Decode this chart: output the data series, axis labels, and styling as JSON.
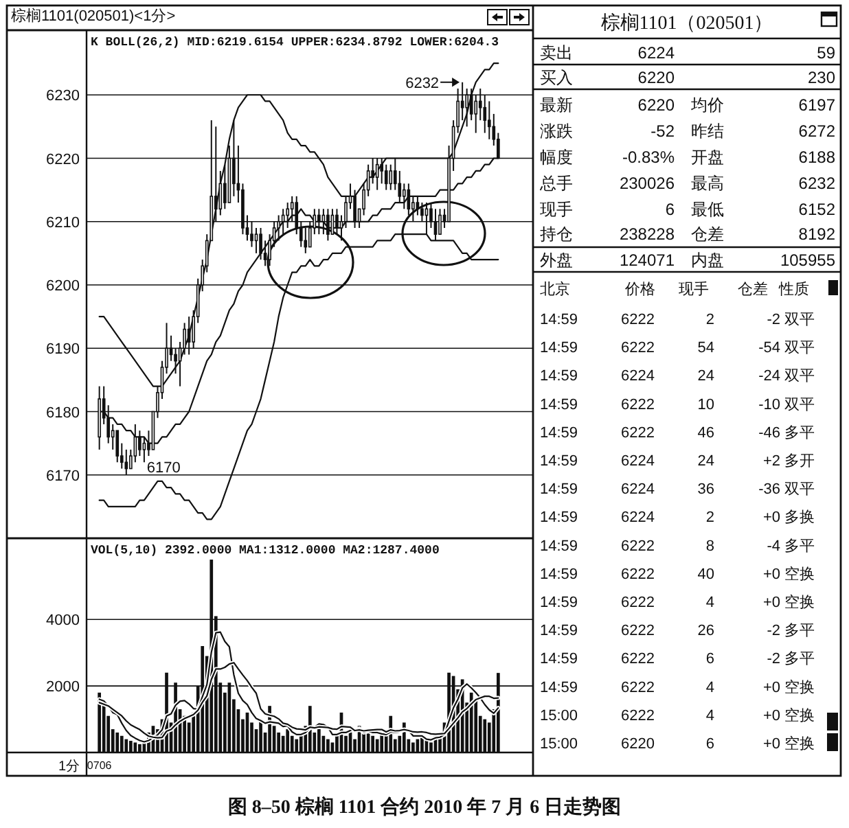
{
  "chart_data": [
    {
      "type": "candlestick",
      "title": "棕榈1101(020501)<1分>",
      "subtitle": "K BOLL(26,2) MID:6219.6154 UPPER:6234.8792 LOWER:6204.3",
      "color": "#111111",
      "categories": [
        null,
        null,
        null,
        null,
        null,
        null,
        null,
        null,
        null,
        null,
        null,
        null,
        null,
        null,
        null,
        null,
        null,
        null,
        null,
        null,
        null,
        null,
        null,
        null,
        null,
        null,
        null,
        null,
        null,
        null,
        null,
        null,
        null,
        null,
        null,
        null,
        null,
        null,
        null,
        null,
        null,
        null,
        null,
        null,
        null,
        null,
        null,
        null,
        null,
        null,
        null,
        null,
        null,
        null,
        null,
        null,
        null,
        null,
        null,
        null,
        null,
        null,
        null,
        null,
        null,
        null,
        null,
        null,
        null,
        null,
        null,
        null,
        null,
        null,
        null,
        null,
        null,
        null,
        null,
        null,
        null,
        null,
        null,
        null,
        null,
        null,
        null,
        null,
        null,
        null
      ],
      "ohlc": [
        [
          6176,
          6184,
          6174,
          6182
        ],
        [
          6182,
          6184,
          6178,
          6179
        ],
        [
          6179,
          6181,
          6175,
          6176
        ],
        [
          6176,
          6178,
          6174,
          6177
        ],
        [
          6177,
          6177,
          6172,
          6173
        ],
        [
          6173,
          6175,
          6171,
          6172
        ],
        [
          6172,
          6174,
          6170,
          6171
        ],
        [
          6171,
          6174,
          6171,
          6173
        ],
        [
          6173,
          6178,
          6172,
          6176
        ],
        [
          6176,
          6177,
          6173,
          6174
        ],
        [
          6174,
          6176,
          6172,
          6175
        ],
        [
          6175,
          6177,
          6173,
          6174
        ],
        [
          6174,
          6180,
          6174,
          6180
        ],
        [
          6180,
          6184,
          6179,
          6183
        ],
        [
          6183,
          6188,
          6182,
          6187
        ],
        [
          6187,
          6194,
          6186,
          6190
        ],
        [
          6190,
          6192,
          6188,
          6189
        ],
        [
          6189,
          6190,
          6186,
          6188
        ],
        [
          6188,
          6191,
          6184,
          6190
        ],
        [
          6190,
          6194,
          6189,
          6193
        ],
        [
          6193,
          6195,
          6189,
          6191
        ],
        [
          6191,
          6196,
          6190,
          6195
        ],
        [
          6195,
          6201,
          6194,
          6200
        ],
        [
          6200,
          6204,
          6199,
          6203
        ],
        [
          6203,
          6208,
          6202,
          6207
        ],
        [
          6207,
          6226,
          6207,
          6214
        ],
        [
          6214,
          6225,
          6210,
          6212
        ],
        [
          6212,
          6218,
          6211,
          6216
        ],
        [
          6216,
          6219,
          6212,
          6213
        ],
        [
          6213,
          6222,
          6213,
          6220
        ],
        [
          6220,
          6226,
          6214,
          6216
        ],
        [
          6216,
          6222,
          6213,
          6215
        ],
        [
          6215,
          6216,
          6208,
          6209
        ],
        [
          6209,
          6211,
          6207,
          6208
        ],
        [
          6208,
          6210,
          6206,
          6207
        ],
        [
          6207,
          6209,
          6205,
          6208
        ],
        [
          6208,
          6209,
          6204,
          6205
        ],
        [
          6205,
          6207,
          6203,
          6204
        ],
        [
          6204,
          6208,
          6203,
          6207
        ],
        [
          6207,
          6210,
          6206,
          6209
        ],
        [
          6209,
          6211,
          6207,
          6210
        ],
        [
          6210,
          6212,
          6208,
          6211
        ],
        [
          6211,
          6213,
          6209,
          6212
        ],
        [
          6212,
          6214,
          6210,
          6213
        ],
        [
          6213,
          6214,
          6208,
          6209
        ],
        [
          6209,
          6210,
          6206,
          6207
        ],
        [
          6207,
          6209,
          6205,
          6206
        ],
        [
          6206,
          6210,
          6206,
          6209
        ],
        [
          6209,
          6212,
          6208,
          6211
        ],
        [
          6211,
          6212,
          6208,
          6210
        ],
        [
          6210,
          6212,
          6208,
          6211
        ],
        [
          6211,
          6212,
          6207,
          6208
        ],
        [
          6208,
          6212,
          6208,
          6211
        ],
        [
          6211,
          6212,
          6208,
          6209
        ],
        [
          6209,
          6211,
          6207,
          6210
        ],
        [
          6210,
          6214,
          6209,
          6213
        ],
        [
          6213,
          6216,
          6212,
          6214
        ],
        [
          6214,
          6215,
          6209,
          6210
        ],
        [
          6210,
          6212,
          6209,
          6212
        ],
        [
          6212,
          6216,
          6211,
          6215
        ],
        [
          6215,
          6219,
          6214,
          6218
        ],
        [
          6218,
          6220,
          6216,
          6217
        ],
        [
          6217,
          6220,
          6215,
          6219
        ],
        [
          6219,
          6220,
          6216,
          6218
        ],
        [
          6218,
          6219,
          6215,
          6216
        ],
        [
          6216,
          6219,
          6215,
          6218
        ],
        [
          6218,
          6220,
          6215,
          6216
        ],
        [
          6216,
          6218,
          6213,
          6214
        ],
        [
          6214,
          6216,
          6212,
          6215
        ],
        [
          6215,
          6216,
          6211,
          6212
        ],
        [
          6212,
          6214,
          6210,
          6213
        ],
        [
          6213,
          6214,
          6211,
          6212
        ],
        [
          6212,
          6213,
          6210,
          6211
        ],
        [
          6211,
          6213,
          6208,
          6212
        ],
        [
          6212,
          6213,
          6209,
          6210
        ],
        [
          6210,
          6212,
          6207,
          6208
        ],
        [
          6208,
          6212,
          6208,
          6211
        ],
        [
          6211,
          6212,
          6209,
          6210
        ],
        [
          6210,
          6222,
          6210,
          6220
        ],
        [
          6220,
          6226,
          6218,
          6225
        ],
        [
          6225,
          6231,
          6224,
          6229
        ],
        [
          6229,
          6232,
          6226,
          6228
        ],
        [
          6228,
          6231,
          6225,
          6230
        ],
        [
          6230,
          6231,
          6226,
          6227
        ],
        [
          6227,
          6230,
          6224,
          6229
        ],
        [
          6229,
          6231,
          6226,
          6228
        ],
        [
          6228,
          6230,
          6224,
          6226
        ],
        [
          6226,
          6229,
          6223,
          6225
        ],
        [
          6225,
          6227,
          6222,
          6223
        ],
        [
          6223,
          6224,
          6220,
          6220
        ]
      ],
      "series": [
        {
          "type": "line",
          "color": "#111111",
          "values": [
            6195,
            6195,
            6194,
            6193,
            6192,
            6191,
            6190,
            6189,
            6188,
            6187,
            6186,
            6185,
            6184,
            6184,
            6184,
            6185,
            6186,
            6187,
            6188,
            6190,
            6192,
            6195,
            6198,
            6201,
            6204,
            6208,
            6212,
            6216,
            6219,
            6223,
            6226,
            6228,
            6229,
            6230,
            6230,
            6230,
            6230,
            6229,
            6229,
            6228,
            6227,
            6226,
            6224,
            6223,
            6223,
            6222,
            6222,
            6221,
            6221,
            6220,
            6219,
            6217,
            6216,
            6215,
            6214,
            6214,
            6214,
            6214,
            6215,
            6216,
            6217,
            6217,
            6218,
            6219,
            6220,
            6220,
            6220,
            6220,
            6220,
            6220,
            6220,
            6220,
            6220,
            6220,
            6220,
            6220,
            6220,
            6220,
            6220,
            6221,
            6223,
            6225,
            6227,
            6230,
            6232,
            6233,
            6234,
            6234,
            6235,
            6235
          ]
        },
        {
          "type": "line",
          "color": "#111111",
          "values": [
            6180,
            6180,
            6179,
            6179,
            6178,
            6178,
            6177,
            6177,
            6176,
            6176,
            6176,
            6175,
            6175,
            6175,
            6176,
            6176,
            6177,
            6178,
            6178,
            6179,
            6180,
            6182,
            6184,
            6186,
            6188,
            6189,
            6191,
            6192,
            6194,
            6196,
            6197,
            6199,
            6200,
            6202,
            6203,
            6204,
            6205,
            6206,
            6207,
            6208,
            6209,
            6210,
            6210,
            6211,
            6211,
            6212,
            6211,
            6211,
            6210,
            6210,
            6210,
            6209,
            6209,
            6209,
            6209,
            6210,
            6210,
            6210,
            6210,
            6210,
            6210,
            6211,
            6211,
            6212,
            6212,
            6212,
            6213,
            6213,
            6213,
            6214,
            6214,
            6214,
            6214,
            6214,
            6214,
            6214,
            6215,
            6215,
            6215,
            6215,
            6216,
            6216,
            6217,
            6217,
            6218,
            6218,
            6219,
            6219,
            6220,
            6220
          ]
        },
        {
          "type": "line",
          "color": "#111111",
          "values": [
            6166,
            6166,
            6165,
            6165,
            6165,
            6165,
            6165,
            6165,
            6165,
            6166,
            6166,
            6167,
            6168,
            6169,
            6169,
            6168,
            6168,
            6167,
            6167,
            6166,
            6166,
            6165,
            6164,
            6164,
            6163,
            6163,
            6164,
            6165,
            6167,
            6169,
            6171,
            6173,
            6175,
            6177,
            6178,
            6180,
            6182,
            6185,
            6188,
            6191,
            6195,
            6198,
            6200,
            6202,
            6202,
            6203,
            6203,
            6204,
            6203,
            6203,
            6204,
            6204,
            6205,
            6205,
            6205,
            6206,
            6206,
            6206,
            6206,
            6206,
            6206,
            6206,
            6207,
            6207,
            6207,
            6207,
            6208,
            6208,
            6208,
            6208,
            6208,
            6208,
            6208,
            6208,
            6207,
            6207,
            6207,
            6207,
            6207,
            6207,
            6206,
            6205,
            6205,
            6204,
            6204,
            6204,
            6204,
            6204,
            6204,
            6204
          ]
        }
      ],
      "ylim": [
        6160,
        6240
      ],
      "yticks": [
        6170,
        6180,
        6190,
        6200,
        6210,
        6220,
        6230
      ],
      "grid": "y",
      "tick_labels": "y",
      "annotations": [
        "6232",
        "6170",
        "图 8–50 棕榈 1101 合约 2010 年 7 月 6 日走势图"
      ]
    },
    {
      "type": "bar",
      "subtitle": "VOL(5,10) 2392.0000 MA1:1312.0000 MA2:1287.4000",
      "xlabel": "1分",
      "categories": [
        "0706",
        null,
        null,
        null,
        null,
        null,
        null,
        null,
        null,
        null,
        null,
        null,
        null,
        null,
        null,
        null,
        null,
        null,
        null,
        null,
        null,
        null,
        null,
        null,
        null,
        null,
        null,
        null,
        null,
        null,
        null,
        null,
        null,
        null,
        null,
        null,
        null,
        null,
        null,
        null,
        null,
        null,
        null,
        null,
        null,
        null,
        null,
        null,
        null,
        null,
        null,
        null,
        null,
        null,
        null,
        null,
        null,
        null,
        null,
        null,
        null,
        null,
        null,
        null,
        null,
        null,
        null,
        null,
        null,
        null,
        null,
        null,
        null,
        null,
        null,
        null,
        null,
        null,
        null,
        null,
        null,
        null,
        null,
        null,
        null,
        null,
        null,
        null,
        null,
        null
      ],
      "series": [
        {
          "type": "bar",
          "color": "#111111",
          "values": [
            1800,
            1500,
            1100,
            700,
            600,
            500,
            400,
            350,
            300,
            250,
            300,
            600,
            800,
            700,
            1000,
            2400,
            900,
            2100,
            1300,
            1100,
            900,
            1200,
            2000,
            3200,
            2900,
            5800,
            4100,
            2100,
            1800,
            2100,
            1600,
            1300,
            1000,
            1200,
            900,
            700,
            1000,
            600,
            1400,
            800,
            600,
            500,
            700,
            500,
            400,
            600,
            800,
            1400,
            600,
            900,
            500,
            400,
            300,
            600,
            1200,
            500,
            700,
            400,
            800,
            600,
            700,
            500,
            400,
            600,
            500,
            1100,
            400,
            500,
            900,
            400,
            300,
            400,
            500,
            400,
            300,
            600,
            500,
            900,
            2400,
            2300,
            1900,
            2200,
            1500,
            1800,
            1600,
            1100,
            1000,
            900,
            1300,
            2392
          ]
        },
        {
          "type": "line",
          "color": "#111111",
          "values": [
            1600,
            1550,
            1400,
            1200,
            1140,
            880,
            660,
            510,
            430,
            360,
            320,
            360,
            450,
            530,
            680,
            1100,
            1160,
            1420,
            1540,
            1560,
            1460,
            1320,
            1300,
            1680,
            2040,
            3020,
            3600,
            3620,
            3340,
            3180,
            2340,
            1780,
            1560,
            1440,
            1200,
            1020,
            960,
            880,
            920,
            900,
            880,
            780,
            800,
            620,
            540,
            540,
            600,
            740,
            760,
            860,
            840,
            760,
            540,
            540,
            600,
            600,
            660,
            680,
            720,
            600,
            640,
            600,
            600,
            560,
            540,
            620,
            600,
            620,
            680,
            660,
            500,
            500,
            500,
            400,
            380,
            440,
            460,
            540,
            940,
            1340,
            1600,
            1940,
            2060,
            1940,
            1800,
            1640,
            1440,
            1280,
            1180,
            1340
          ]
        },
        {
          "type": "line",
          "color": "#111111",
          "values": [
            1500,
            1450,
            1400,
            1300,
            1200,
            1100,
            950,
            830,
            760,
            690,
            580,
            490,
            460,
            440,
            450,
            640,
            690,
            830,
            940,
            1020,
            1080,
            1140,
            1270,
            1510,
            1700,
            2200,
            2510,
            2510,
            2560,
            2660,
            2700,
            2510,
            2330,
            2160,
            1960,
            1780,
            1310,
            1160,
            1120,
            1090,
            1010,
            880,
            850,
            760,
            710,
            700,
            680,
            760,
            740,
            770,
            760,
            750,
            710,
            700,
            780,
            770,
            760,
            660,
            680,
            650,
            670,
            680,
            690,
            690,
            620,
            680,
            650,
            660,
            690,
            660,
            620,
            610,
            620,
            600,
            560,
            550,
            560,
            570,
            720,
            880,
            1040,
            1220,
            1320,
            1460,
            1590,
            1640,
            1690,
            1690,
            1630,
            1640
          ]
        }
      ],
      "ylim": [
        0,
        6400
      ],
      "yticks": [
        2000,
        4000
      ],
      "grid": "y"
    },
    {
      "type": "other",
      "title": "棕榈1101（020501）",
      "annotations": [
        "卖出",
        "6224",
        "59",
        "买入",
        "6220",
        "230",
        "最新",
        "6220",
        "均价",
        "6197",
        "涨跌",
        "-52",
        "昨结",
        "6272",
        "幅度",
        "-0.83%",
        "开盘",
        "6188",
        "总手",
        "230026",
        "最高",
        "6232",
        "现手",
        "6",
        "最低",
        "6152",
        "持仓",
        "238228",
        "仓差",
        "8192",
        "外盘",
        "124071",
        "内盘",
        "105955"
      ]
    },
    {
      "type": "other",
      "annotations": [
        "北京",
        "价格",
        "现手",
        "仓差",
        "性质",
        "14:59",
        "6222",
        "2",
        "-2",
        "双平",
        "14:59",
        "6222",
        "54",
        "-54",
        "双平",
        "14:59",
        "6224",
        "24",
        "-24",
        "双平",
        "14:59",
        "6222",
        "10",
        "-10",
        "双平",
        "14:59",
        "6222",
        "46",
        "-46",
        "多平",
        "14:59",
        "6224",
        "24",
        "+2",
        "多开",
        "14:59",
        "6224",
        "36",
        "-36",
        "双平",
        "14:59",
        "6224",
        "2",
        "+0",
        "多换",
        "14:59",
        "6222",
        "8",
        "-4",
        "多平",
        "14:59",
        "6222",
        "40",
        "+0",
        "空换",
        "14:59",
        "6222",
        "4",
        "+0",
        "空换",
        "14:59",
        "6222",
        "26",
        "-2",
        "多平",
        "14:59",
        "6222",
        "6",
        "-2",
        "多平",
        "14:59",
        "6222",
        "4",
        "+0",
        "空换",
        "15:00",
        "6222",
        "4",
        "+0",
        "空换",
        "15:00",
        "6220",
        "6",
        "+0",
        "空换"
      ]
    }
  ]
}
